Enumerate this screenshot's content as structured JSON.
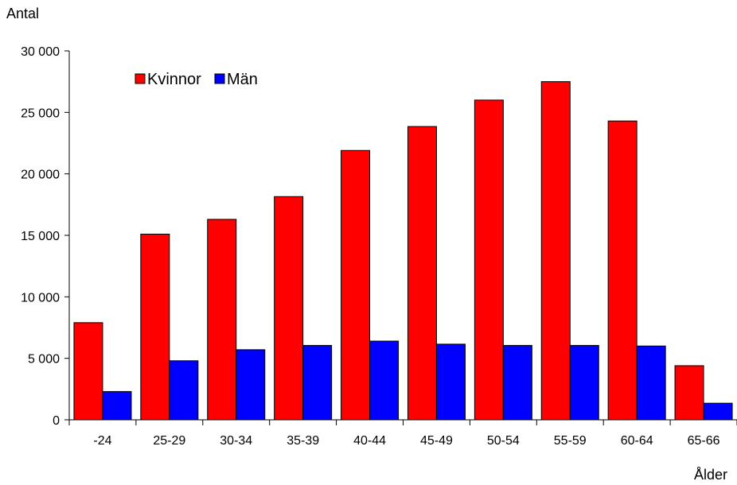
{
  "chart_data": {
    "type": "bar",
    "ylabel": "Antal",
    "xlabel": "Ålder",
    "ylim": [
      0,
      30000
    ],
    "yticks": [
      0,
      5000,
      10000,
      15000,
      20000,
      25000,
      30000
    ],
    "ytick_labels": [
      "0",
      "5 000",
      "10 000",
      "15 000",
      "20 000",
      "25 000",
      "30 000"
    ],
    "categories": [
      "-24",
      "25-29",
      "30-34",
      "35-39",
      "40-44",
      "45-49",
      "50-54",
      "55-59",
      "60-64",
      "65-66"
    ],
    "series": [
      {
        "name": "Kvinnor",
        "color": "#ff0000",
        "values": [
          7900,
          15100,
          16300,
          18150,
          21900,
          23850,
          26000,
          27500,
          24300,
          4400
        ]
      },
      {
        "name": "Män",
        "color": "#0000ff",
        "values": [
          2300,
          4800,
          5700,
          6050,
          6400,
          6150,
          6050,
          6050,
          6000,
          1350
        ]
      }
    ],
    "legend_position": "top-left",
    "grid": false
  }
}
